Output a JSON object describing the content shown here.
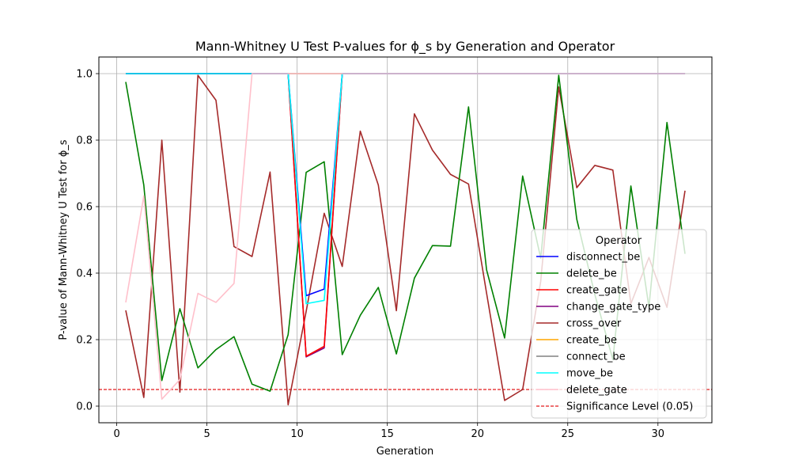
{
  "chart_data": {
    "type": "line",
    "title": "Mann-Whitney U Test P-values for ϕ_s by Generation and Operator",
    "xlabel": "Generation",
    "ylabel": "P-value of Mann-Whitney U Test for ϕ_s",
    "xlim": [
      -0.99,
      32.99
    ],
    "ylim": [
      -0.05,
      1.05
    ],
    "xticks": [
      0,
      5,
      10,
      15,
      20,
      25,
      30
    ],
    "yticks": [
      0.0,
      0.2,
      0.4,
      0.6,
      0.8,
      1.0
    ],
    "xtick_labels": [
      "0",
      "5",
      "10",
      "15",
      "20",
      "25",
      "30"
    ],
    "ytick_labels": [
      "0.0",
      "0.2",
      "0.4",
      "0.6",
      "0.8",
      "1.0"
    ],
    "grid": true,
    "legend_title": "Operator",
    "legend_position": "right",
    "significance_level": 0.05,
    "significance_label": "Significance Level (0.05)",
    "significance_color": "#e31a1c",
    "series": [
      {
        "name": "disconnect_be",
        "color": "#0000ff",
        "x": [
          0.5,
          1.5,
          2.5,
          3.5,
          4.5,
          5.5,
          6.5,
          7.5,
          8.5,
          9.5,
          10.5,
          11.5,
          12.5,
          13.5,
          14.5,
          15.5,
          16.5,
          17.5,
          18.5,
          19.5,
          20.5,
          21.5,
          22.5,
          23.5,
          24.5,
          25.5,
          26.5,
          27.5,
          28.5,
          29.5,
          30.5,
          31.5
        ],
        "values": [
          1,
          1,
          1,
          1,
          1,
          1,
          1,
          1,
          1,
          1,
          0.332,
          0.352,
          1,
          1,
          1,
          1,
          1,
          1,
          1,
          1,
          1,
          1,
          1,
          1,
          1,
          1,
          1,
          1,
          1,
          1,
          1,
          1
        ]
      },
      {
        "name": "delete_be",
        "color": "#008000",
        "x": [
          0.5,
          1.5,
          2.5,
          3.5,
          4.5,
          5.5,
          6.5,
          7.5,
          8.5,
          9.5,
          10.5,
          11.5,
          12.5,
          13.5,
          14.5,
          15.5,
          16.5,
          17.5,
          18.5,
          19.5,
          20.5,
          21.5,
          22.5,
          23.5,
          24.5,
          25.5,
          26.5,
          27.5,
          28.5,
          29.5,
          30.5,
          31.5
        ],
        "values": [
          0.975,
          0.665,
          0.077,
          0.293,
          0.115,
          0.17,
          0.209,
          0.066,
          0.045,
          0.215,
          0.703,
          0.735,
          0.155,
          0.273,
          0.357,
          0.157,
          0.385,
          0.483,
          0.481,
          0.9,
          0.41,
          0.205,
          0.692,
          0.445,
          0.995,
          0.562,
          0.336,
          0.14,
          0.662,
          0.298,
          0.853,
          0.458
        ]
      },
      {
        "name": "create_gate",
        "color": "#ff0000",
        "x": [
          0.5,
          1.5,
          2.5,
          3.5,
          4.5,
          5.5,
          6.5,
          7.5,
          8.5,
          9.5,
          10.5,
          11.5,
          12.5,
          13.5,
          14.5,
          15.5,
          16.5,
          17.5,
          18.5,
          19.5,
          20.5,
          21.5,
          22.5,
          23.5,
          24.5,
          25.5,
          26.5,
          27.5,
          28.5,
          29.5,
          30.5,
          31.5
        ],
        "values": [
          1,
          1,
          1,
          1,
          1,
          1,
          1,
          1,
          1,
          1,
          0.15,
          0.18,
          1,
          1,
          1,
          1,
          1,
          1,
          1,
          1,
          1,
          1,
          1,
          1,
          1,
          1,
          1,
          1,
          1,
          1,
          1,
          1
        ]
      },
      {
        "name": "change_gate_type",
        "color": "#800080",
        "x": [
          0.5,
          1.5,
          2.5,
          3.5,
          4.5,
          5.5,
          6.5,
          7.5,
          8.5,
          9.5,
          10.5,
          11.5,
          12.5,
          13.5,
          14.5,
          15.5,
          16.5,
          17.5,
          18.5,
          19.5,
          20.5,
          21.5,
          22.5,
          23.5,
          24.5,
          25.5,
          26.5,
          27.5,
          28.5,
          29.5,
          30.5,
          31.5
        ],
        "values": [
          1,
          1,
          1,
          1,
          1,
          1,
          1,
          1,
          1,
          1,
          0.148,
          0.175,
          1,
          1,
          1,
          1,
          1,
          1,
          1,
          1,
          1,
          1,
          1,
          1,
          1,
          1,
          1,
          1,
          1,
          1,
          1,
          1
        ]
      },
      {
        "name": "cross_over",
        "color": "#a52a2a",
        "x": [
          0.5,
          1.5,
          2.5,
          3.5,
          4.5,
          5.5,
          6.5,
          7.5,
          8.5,
          9.5,
          10.5,
          11.5,
          12.5,
          13.5,
          14.5,
          15.5,
          16.5,
          17.5,
          18.5,
          19.5,
          20.5,
          21.5,
          22.5,
          23.5,
          24.5,
          25.5,
          26.5,
          27.5,
          28.5,
          29.5,
          30.5,
          31.5
        ],
        "values": [
          0.288,
          0.026,
          0.8,
          0.042,
          0.995,
          0.92,
          0.48,
          0.45,
          0.704,
          0.004,
          0.285,
          0.58,
          0.42,
          0.827,
          0.665,
          0.287,
          0.879,
          0.77,
          0.697,
          0.668,
          0.34,
          0.017,
          0.05,
          0.375,
          0.96,
          0.657,
          0.724,
          0.71,
          0.308,
          0.447,
          0.297,
          0.648
        ]
      },
      {
        "name": "create_be",
        "color": "#ffa500",
        "x": [
          0.5,
          1.5,
          2.5,
          3.5,
          4.5,
          5.5,
          6.5,
          7.5,
          8.5,
          9.5,
          10.5,
          11.5,
          12.5,
          13.5,
          14.5,
          15.5,
          16.5,
          17.5,
          18.5,
          19.5,
          20.5,
          21.5,
          22.5,
          23.5,
          24.5,
          25.5,
          26.5,
          27.5,
          28.5,
          29.5,
          30.5,
          31.5
        ],
        "values": [
          1,
          1,
          1,
          1,
          1,
          1,
          1,
          1,
          1,
          1,
          1,
          1,
          1,
          1,
          1,
          1,
          1,
          1,
          1,
          1,
          1,
          1,
          1,
          1,
          1,
          1,
          1,
          1,
          1,
          1,
          1,
          1
        ]
      },
      {
        "name": "connect_be",
        "color": "#808080",
        "x": [
          0.5,
          1.5,
          2.5,
          3.5,
          4.5,
          5.5,
          6.5,
          7.5,
          8.5,
          9.5,
          10.5,
          11.5,
          12.5,
          13.5,
          14.5,
          15.5,
          16.5,
          17.5,
          18.5,
          19.5,
          20.5,
          21.5,
          22.5,
          23.5,
          24.5,
          25.5,
          26.5,
          27.5,
          28.5,
          29.5,
          30.5,
          31.5
        ],
        "values": [
          1,
          1,
          1,
          1,
          1,
          1,
          1,
          1,
          1,
          1,
          1,
          1,
          1,
          1,
          1,
          1,
          1,
          1,
          1,
          1,
          1,
          1,
          1,
          1,
          1,
          1,
          1,
          1,
          1,
          1,
          1,
          1
        ]
      },
      {
        "name": "move_be",
        "color": "#00ffff",
        "x": [
          0.5,
          1.5,
          2.5,
          3.5,
          4.5,
          5.5,
          6.5,
          7.5,
          8.5,
          9.5,
          10.5,
          11.5,
          12.5,
          13.5,
          14.5,
          15.5,
          16.5,
          17.5,
          18.5,
          19.5,
          20.5,
          21.5,
          22.5,
          23.5,
          24.5,
          25.5,
          26.5,
          27.5,
          28.5,
          29.5,
          30.5,
          31.5
        ],
        "values": [
          1,
          1,
          1,
          1,
          1,
          1,
          1,
          1,
          1,
          1,
          0.308,
          0.318,
          1,
          1,
          1,
          1,
          1,
          1,
          1,
          1,
          1,
          1,
          1,
          1,
          1,
          1,
          1,
          1,
          1,
          1,
          1,
          1
        ]
      },
      {
        "name": "delete_gate",
        "color": "#ffc0cb",
        "x": [
          0.5,
          1.5,
          2.5,
          3.5,
          4.5,
          5.5,
          6.5,
          7.5,
          8.5,
          9.5,
          10.5,
          11.5,
          12.5,
          13.5,
          14.5,
          15.5,
          16.5,
          17.5,
          18.5,
          19.5,
          20.5,
          21.5,
          22.5,
          23.5,
          24.5,
          25.5,
          26.5,
          27.5,
          28.5,
          29.5,
          30.5,
          31.5
        ],
        "values": [
          0.312,
          0.632,
          0.021,
          0.08,
          0.339,
          0.312,
          0.369,
          1,
          1,
          1,
          1,
          1,
          1,
          1,
          1,
          1,
          1,
          1,
          1,
          1,
          1,
          1,
          1,
          1,
          1,
          1,
          1,
          1,
          1,
          1,
          1,
          1
        ]
      }
    ]
  }
}
